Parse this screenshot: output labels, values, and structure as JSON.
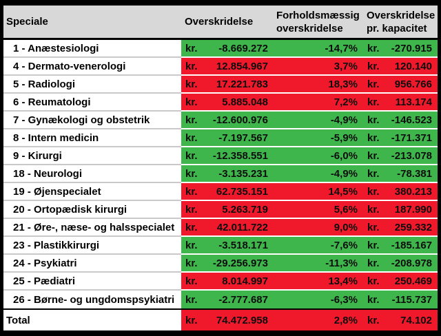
{
  "colors": {
    "green": "#3fb64c",
    "red": "#ef192b",
    "header_bg": "#d8d8d8"
  },
  "currency_prefix": "kr.",
  "header": {
    "col1": "Speciale",
    "col2": "Overskridelse",
    "col3_line1": "Forholdsmæssig",
    "col3_line2": "overskridelse",
    "col4_line1": "Overskridelse",
    "col4_line2": "pr. kapacitet"
  },
  "rows": [
    {
      "speciale": "1 - Anæstesiologi",
      "overskridelse": "-8.669.272",
      "pct": "-14,7%",
      "per_kapacitet": "-270.915",
      "status": "green"
    },
    {
      "speciale": "4 - Dermato-venerologi",
      "overskridelse": "12.854.967",
      "pct": "3,7%",
      "per_kapacitet": "120.140",
      "status": "red"
    },
    {
      "speciale": "5 - Radiologi",
      "overskridelse": "17.221.783",
      "pct": "18,3%",
      "per_kapacitet": "956.766",
      "status": "red"
    },
    {
      "speciale": "6 - Reumatologi",
      "overskridelse": "5.885.048",
      "pct": "7,2%",
      "per_kapacitet": "113.174",
      "status": "red"
    },
    {
      "speciale": "7 - Gynækologi og obstetrik",
      "overskridelse": "-12.600.976",
      "pct": "-4,9%",
      "per_kapacitet": "-146.523",
      "status": "green"
    },
    {
      "speciale": "8 - Intern medicin",
      "overskridelse": "-7.197.567",
      "pct": "-5,9%",
      "per_kapacitet": "-171.371",
      "status": "green"
    },
    {
      "speciale": "9 - Kirurgi",
      "overskridelse": "-12.358.551",
      "pct": "-6,0%",
      "per_kapacitet": "-213.078",
      "status": "green"
    },
    {
      "speciale": "18 - Neurologi",
      "overskridelse": "-3.135.231",
      "pct": "-4,9%",
      "per_kapacitet": "-78.381",
      "status": "green"
    },
    {
      "speciale": "19 - Øjenspecialet",
      "overskridelse": "62.735.151",
      "pct": "14,5%",
      "per_kapacitet": "380.213",
      "status": "red"
    },
    {
      "speciale": "20 - Ortopædisk kirurgi",
      "overskridelse": "5.263.719",
      "pct": "5,6%",
      "per_kapacitet": "187.990",
      "status": "red"
    },
    {
      "speciale": "21 - Øre-, næse- og halsspecialet",
      "overskridelse": "42.011.722",
      "pct": "9,0%",
      "per_kapacitet": "259.332",
      "status": "red"
    },
    {
      "speciale": "23 - Plastikkirurgi",
      "overskridelse": "-3.518.171",
      "pct": "-7,6%",
      "per_kapacitet": "-185.167",
      "status": "green"
    },
    {
      "speciale": "24 - Psykiatri",
      "overskridelse": "-29.256.973",
      "pct": "-11,3%",
      "per_kapacitet": "-208.978",
      "status": "green"
    },
    {
      "speciale": "25 - Pædiatri",
      "overskridelse": "8.014.997",
      "pct": "13,4%",
      "per_kapacitet": "250.469",
      "status": "red"
    },
    {
      "speciale": "26 - Børne- og ungdomspsykiatri",
      "overskridelse": "-2.777.687",
      "pct": "-6,3%",
      "per_kapacitet": "-115.737",
      "status": "green"
    }
  ],
  "total": {
    "label": "Total",
    "overskridelse": "74.472.958",
    "pct": "2,8%",
    "per_kapacitet": "74.102",
    "status": "red"
  }
}
